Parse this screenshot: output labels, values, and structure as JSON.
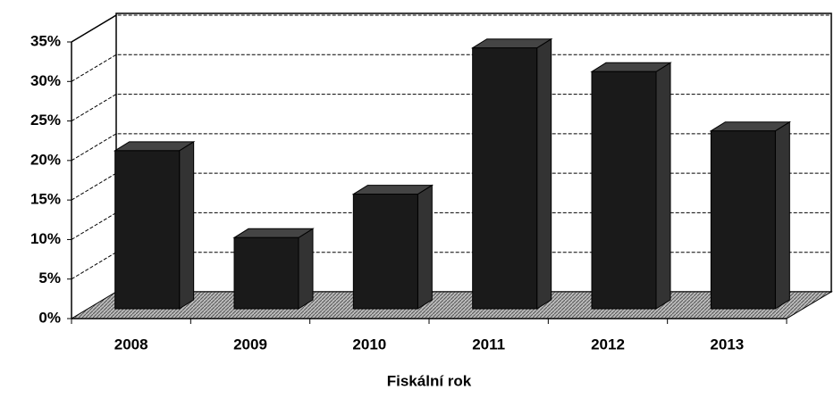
{
  "chart_data": {
    "type": "bar",
    "x_label": "Fiskální rok",
    "categories": [
      "2008",
      "2009",
      "2010",
      "2011",
      "2012",
      "2013"
    ],
    "values": [
      20,
      9,
      14.5,
      33,
      30,
      22.5
    ],
    "color": "#1a1a1a",
    "ylim": [
      0,
      35
    ],
    "yticks": [
      {
        "value": 0,
        "label": "0%"
      },
      {
        "value": 5,
        "label": "5%"
      },
      {
        "value": 10,
        "label": "10%"
      },
      {
        "value": 15,
        "label": "15%"
      },
      {
        "value": 20,
        "label": "20%"
      },
      {
        "value": 25,
        "label": "25%"
      },
      {
        "value": 30,
        "label": "30%"
      },
      {
        "value": 35,
        "label": "35%"
      }
    ],
    "grid": true
  }
}
